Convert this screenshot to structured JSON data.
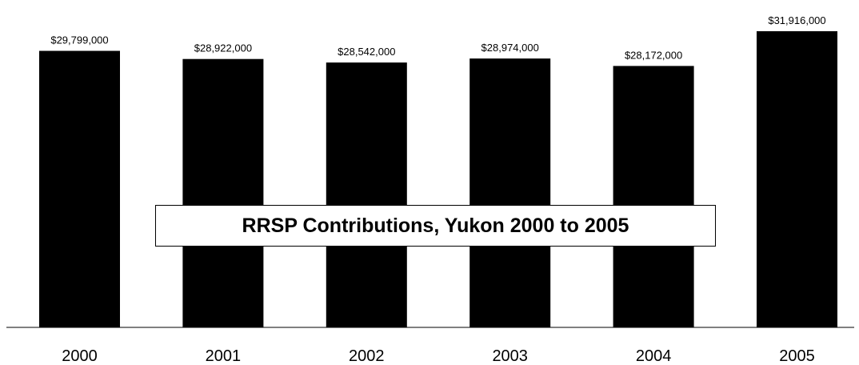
{
  "chart_data": {
    "type": "bar",
    "title": "RRSP Contributions, Yukon 2000 to 2005",
    "xlabel": "",
    "ylabel": "",
    "categories": [
      "2000",
      "2001",
      "2002",
      "2003",
      "2004",
      "2005"
    ],
    "values": [
      29799000,
      28922000,
      28542000,
      28974000,
      28172000,
      31916000
    ],
    "data_labels": [
      "$29,799,000",
      "$28,922,000",
      "$28,542,000",
      "$28,974,000",
      "$28,172,000",
      "$31,916,000"
    ],
    "ylim": [
      0,
      32000000
    ],
    "bar_color": "#000000",
    "grid": false,
    "legend": "none"
  }
}
